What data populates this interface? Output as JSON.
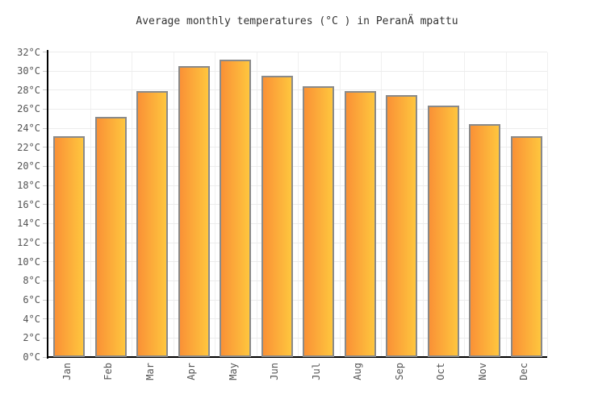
{
  "chart_data": {
    "type": "bar",
    "title": "Average monthly temperatures (°C ) in PeranÄ mpattu",
    "categories": [
      "Jan",
      "Feb",
      "Mar",
      "Apr",
      "May",
      "Jun",
      "Jul",
      "Aug",
      "Sep",
      "Oct",
      "Nov",
      "Dec"
    ],
    "values": [
      23.2,
      25.2,
      27.9,
      30.5,
      31.2,
      29.5,
      28.4,
      27.9,
      27.5,
      26.4,
      24.4,
      23.2
    ],
    "unit": "°C",
    "ylim": [
      0,
      32
    ],
    "ytick_step": 2,
    "ytick_values": [
      0,
      2,
      4,
      6,
      8,
      10,
      12,
      14,
      16,
      18,
      20,
      22,
      24,
      26,
      28,
      30,
      32
    ],
    "ytick_suffix": "°C",
    "xlabel": "",
    "ylabel": "",
    "grid": true,
    "legend": false,
    "colors": {
      "bar_gradient_left": "#fa9136",
      "bar_gradient_right": "#fec63e",
      "bar_border": "#8a8a8a",
      "grid_line": "#ececec",
      "axis_line": "#000000",
      "tick_mark": "#c9c9c9",
      "label_text": "#555555",
      "title_text": "#333333",
      "background": "#ffffff"
    }
  }
}
